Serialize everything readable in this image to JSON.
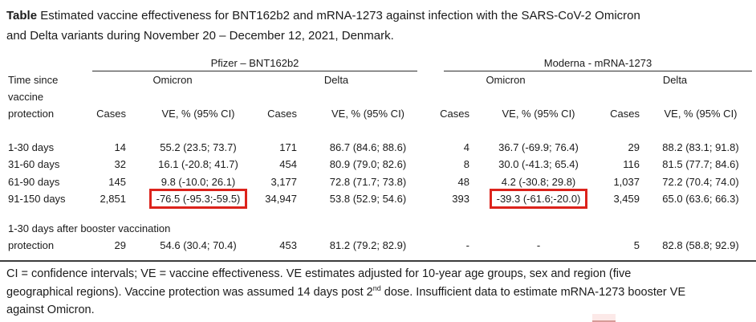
{
  "title": {
    "prefix": "Table",
    "line1_rest": " Estimated vaccine effectiveness for BNT162b2 and mRNA-1273 against infection with the SARS-CoV-2 Omicron",
    "line2": "and Delta variants during November 20 – December 12, 2021, Denmark."
  },
  "table": {
    "time_since_header": [
      "Time since",
      "vaccine",
      "protection"
    ],
    "groups": [
      {
        "name": "Pfizer – BNT162b2"
      },
      {
        "name": "Moderna - mRNA-1273"
      }
    ],
    "variant_headers": [
      "Omicron",
      "Delta",
      "Omicron",
      "Delta"
    ],
    "cases_header": "Cases",
    "ve_header": "VE, % (95% CI)",
    "rows": [
      {
        "label": "1-30 days",
        "values": [
          "14",
          "55.2 (23.5; 73.7)",
          "171",
          "86.7 (84.6; 88.6)",
          "4",
          "36.7 (-69.9; 76.4)",
          "29",
          "88.2 (83.1; 91.8)"
        ]
      },
      {
        "label": "31-60 days",
        "values": [
          "32",
          "16.1 (-20.8; 41.7)",
          "454",
          "80.9 (79.0; 82.6)",
          "8",
          "30.0 (-41.3; 65.4)",
          "116",
          "81.5 (77.7; 84.6)"
        ]
      },
      {
        "label": "61-90 days",
        "values": [
          "145",
          "9.8 (-10.0; 26.1)",
          "3,177",
          "72.8 (71.7; 73.8)",
          "48",
          "4.2 (-30.8; 29.8)",
          "1,037",
          "72.2 (70.4; 74.0)"
        ]
      },
      {
        "label": "91-150 days",
        "values": [
          "2,851",
          "-76.5 (-95.3;-59.5)",
          "34,947",
          "53.8 (52.9; 54.6)",
          "393",
          "-39.3 (-61.6;-20.0)",
          "3,459",
          "65.0 (63.6; 66.3)"
        ],
        "highlighted_cells": [
          1,
          5
        ]
      }
    ],
    "booster_row": {
      "label_line1": "1-30 days after booster vaccination",
      "label_line2": "protection",
      "values": [
        "29",
        "54.6 (30.4; 70.4)",
        "453",
        "81.2 (79.2; 82.9)",
        "-",
        "-",
        "5",
        "82.8 (58.8; 92.9)"
      ]
    }
  },
  "footnote": {
    "line1": "CI = confidence intervals; VE = vaccine effectiveness. VE estimates adjusted for 10-year age groups, sex and region (five",
    "line2_pre": "geographical regions). Vaccine protection was assumed 14 days post 2",
    "line2_sup": "nd",
    "line2_post": " dose. Insufficient data to estimate mRNA-1273 booster VE",
    "line3": "against Omicron."
  },
  "colors": {
    "highlight_red": "#dc231c"
  }
}
